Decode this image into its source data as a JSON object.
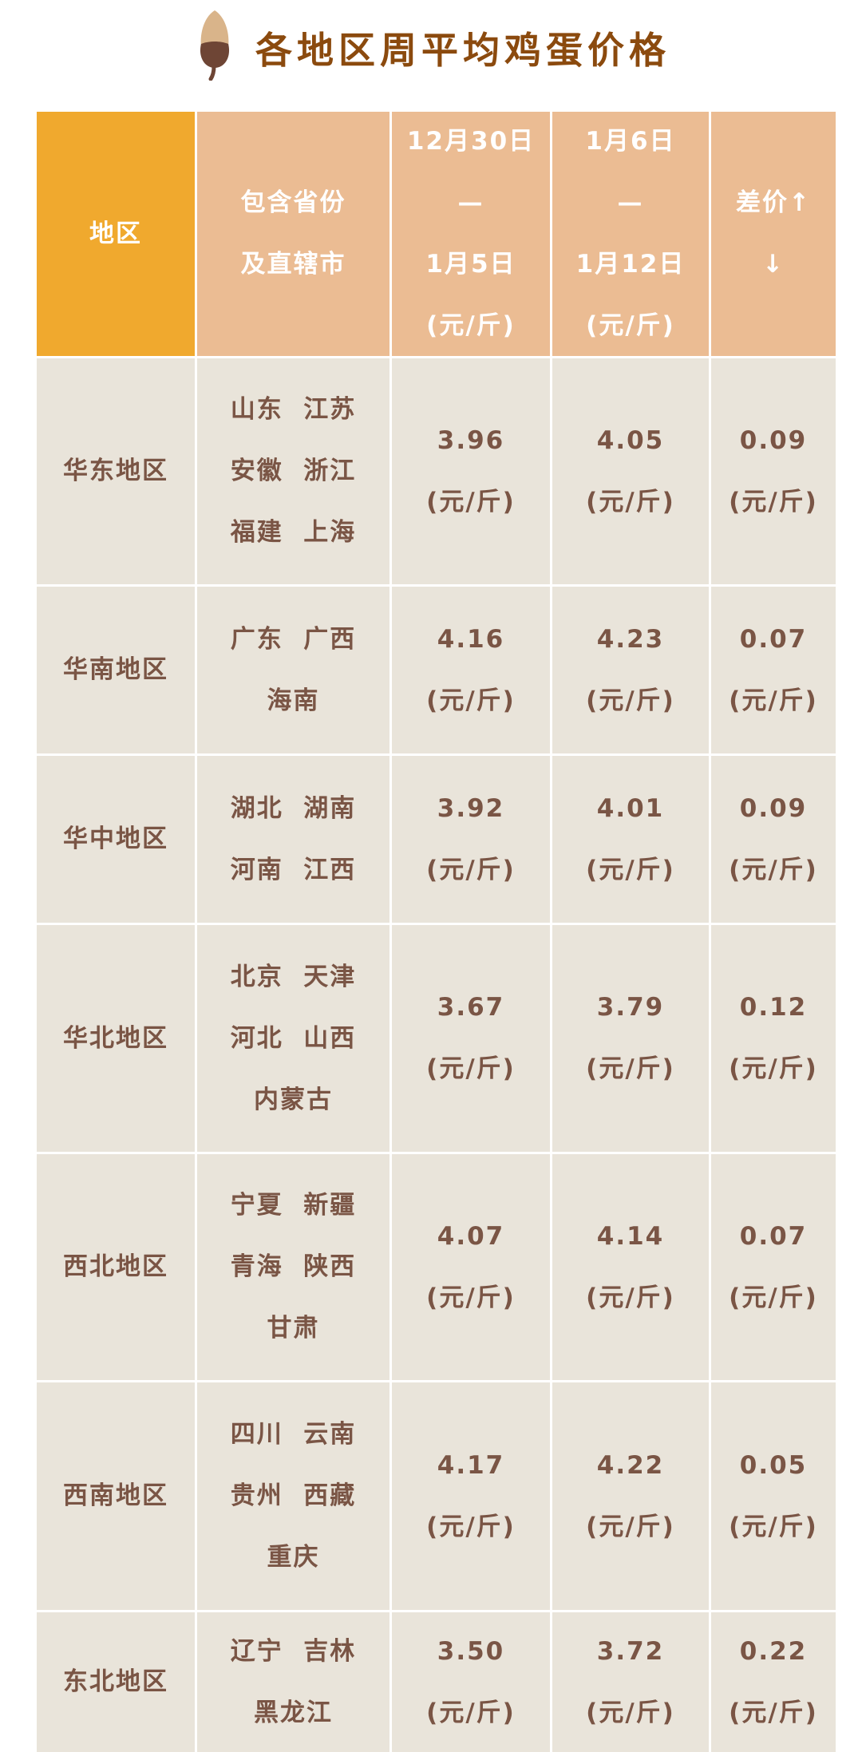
{
  "title": "各地区周平均鸡蛋价格",
  "colors": {
    "title": "#8B4A0E",
    "header_first": "#F0A92E",
    "header": "#EBBC93",
    "body": "#E9E4DA",
    "text": "#7A5545"
  },
  "header": [
    [
      "地区"
    ],
    [
      "包含省份",
      "及直辖市"
    ],
    [
      "12月30日",
      "—",
      "1月5日",
      "(元/斤)"
    ],
    [
      "1月6日",
      "—",
      "1月12日",
      "(元/斤)"
    ],
    [
      "差价↑",
      "↓"
    ]
  ],
  "rows": [
    {
      "region": "华东地区",
      "provinces": [
        "山东  江苏",
        "安徽  浙江",
        "福建  上海"
      ],
      "prev": "3.96",
      "curr": "4.05",
      "diff": "0.09",
      "unit": "(元/斤)"
    },
    {
      "region": "华南地区",
      "provinces": [
        "广东  广西",
        "海南"
      ],
      "prev": "4.16",
      "curr": "4.23",
      "diff": "0.07",
      "unit": "(元/斤)"
    },
    {
      "region": "华中地区",
      "provinces": [
        "湖北  湖南",
        "河南  江西"
      ],
      "prev": "3.92",
      "curr": "4.01",
      "diff": "0.09",
      "unit": "(元/斤)"
    },
    {
      "region": "华北地区",
      "provinces": [
        "北京  天津",
        "河北  山西",
        "内蒙古"
      ],
      "prev": "3.67",
      "curr": "3.79",
      "diff": "0.12",
      "unit": "(元/斤)"
    },
    {
      "region": "西北地区",
      "provinces": [
        "宁夏  新疆",
        "青海  陕西",
        "甘肃"
      ],
      "prev": "4.07",
      "curr": "4.14",
      "diff": "0.07",
      "unit": "(元/斤)"
    },
    {
      "region": "西南地区",
      "provinces": [
        "四川  云南",
        "贵州  西藏",
        "重庆"
      ],
      "prev": "4.17",
      "curr": "4.22",
      "diff": "0.05",
      "unit": "(元/斤)"
    },
    {
      "region": "东北地区",
      "provinces": [
        "辽宁  吉林",
        "黑龙江"
      ],
      "prev": "3.50",
      "curr": "3.72",
      "diff": "0.22",
      "unit": "(元/斤)"
    }
  ]
}
